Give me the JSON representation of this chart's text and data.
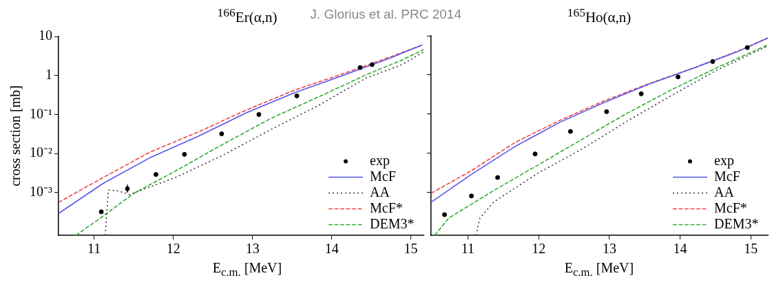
{
  "chart_data": [
    {
      "type": "line",
      "title": "$^{166}$Er(α,n)",
      "xlabel": "E$_{c.m.}$ [MeV]",
      "ylabel": "cross section [mb]",
      "annotations": [
        "J. Glorius et al. PRC 2014"
      ],
      "log": "y",
      "grid": false,
      "legend": "bottom right",
      "xlim": [
        10.55,
        15.16
      ],
      "xticks": [
        11,
        12,
        13,
        14,
        15
      ],
      "ylim": [
        8e-05,
        10
      ],
      "yticks": [
        10,
        1,
        {
          "value": 0.1,
          "label": "10⁻¹"
        },
        {
          "value": 0.01,
          "label": "10⁻²"
        },
        {
          "value": 0.001,
          "label": "10⁻³"
        }
      ],
      "series": [
        {
          "name": "exp",
          "type": "scatter",
          "marker": "circle",
          "color": "#000000",
          "x": [
            11.09,
            11.42,
            11.78,
            12.14,
            12.61,
            13.08,
            13.56,
            14.36,
            14.51
          ],
          "values": [
            0.00032,
            0.00125,
            0.0029,
            0.0095,
            0.032,
            0.1,
            0.3,
            1.6,
            1.9
          ],
          "errors": [
            null,
            [
              0.001,
              0.0016
            ],
            null,
            null,
            null,
            null,
            null,
            null,
            null
          ]
        },
        {
          "name": "McF",
          "type": "line",
          "line_style": "solid",
          "color": "#5555ee",
          "x": [
            10.55,
            11.11,
            11.71,
            12.32,
            12.92,
            13.53,
            14.14,
            14.74,
            15.14
          ],
          "values": [
            0.00029,
            0.0017,
            0.0079,
            0.028,
            0.11,
            0.36,
            1.0,
            2.8,
            6.0
          ]
        },
        {
          "name": "AA",
          "type": "line",
          "line_style": "dotted",
          "color": "#333333",
          "x": [
            11.14,
            11.16,
            11.18,
            11.3,
            11.45,
            12.02,
            12.62,
            13.23,
            13.83,
            14.44,
            14.89,
            15.16
          ],
          "values": [
            8e-05,
            0.00032,
            0.00115,
            0.0011,
            0.00089,
            0.0024,
            0.0089,
            0.041,
            0.17,
            0.87,
            1.9,
            4.0
          ]
        },
        {
          "name": "McF*",
          "type": "line",
          "line_style": "dashed",
          "color": "#ee4444",
          "x": [
            10.55,
            11.11,
            11.71,
            12.32,
            12.92,
            13.53,
            14.14,
            14.74,
            15.16
          ],
          "values": [
            0.00056,
            0.0024,
            0.011,
            0.036,
            0.13,
            0.42,
            1.1,
            3.0,
            6.2
          ]
        },
        {
          "name": "DEM3*",
          "type": "line",
          "line_style": "dashed",
          "color": "#33aa33",
          "x": [
            10.77,
            11.09,
            11.5,
            12.02,
            12.62,
            13.23,
            13.83,
            14.44,
            14.89,
            15.16
          ],
          "values": [
            8e-05,
            0.00023,
            0.00095,
            0.0035,
            0.017,
            0.079,
            0.28,
            1.05,
            2.5,
            4.6
          ]
        }
      ]
    },
    {
      "type": "line",
      "title": "$^{165}$Ho(α,n)",
      "xlabel": "E$_{c.m.}$ [MeV]",
      "log": "y",
      "grid": false,
      "legend": "bottom right",
      "tick_labels": "x",
      "xlim": [
        10.48,
        15.24
      ],
      "xticks": [
        11,
        12,
        13,
        14,
        15
      ],
      "ylim": [
        8e-05,
        10
      ],
      "yticks": [
        {
          "value": 10,
          "label": null
        },
        {
          "value": 1,
          "label": null
        },
        {
          "value": 0.1,
          "label": null
        },
        {
          "value": 0.01,
          "label": null
        },
        {
          "value": 0.001,
          "label": null
        }
      ],
      "series": [
        {
          "name": "exp",
          "type": "scatter",
          "marker": "circle",
          "color": "#000000",
          "x": [
            10.67,
            11.05,
            11.42,
            11.95,
            12.45,
            12.96,
            13.45,
            13.97,
            14.46,
            14.95
          ],
          "values": [
            0.00027,
            0.00081,
            0.0024,
            0.0096,
            0.036,
            0.115,
            0.33,
            0.89,
            2.2,
            5.0
          ]
        },
        {
          "name": "McF",
          "type": "line",
          "line_style": "solid",
          "color": "#5555ee",
          "x": [
            10.48,
            11.04,
            11.67,
            12.3,
            12.93,
            13.56,
            14.19,
            14.82,
            15.24
          ],
          "values": [
            0.00056,
            0.0028,
            0.015,
            0.062,
            0.2,
            0.58,
            1.5,
            4.0,
            8.7
          ]
        },
        {
          "name": "AA",
          "type": "line",
          "line_style": "dotted",
          "color": "#333333",
          "x": [
            11.12,
            11.14,
            11.17,
            11.36,
            11.99,
            12.62,
            13.25,
            13.88,
            14.51,
            15.24
          ],
          "values": [
            8e-05,
            0.00013,
            0.00022,
            0.00056,
            0.0031,
            0.013,
            0.066,
            0.3,
            1.3,
            5.5
          ]
        },
        {
          "name": "McF*",
          "type": "line",
          "line_style": "dashed",
          "color": "#ee4444",
          "x": [
            10.48,
            11.04,
            11.67,
            12.3,
            12.93,
            13.56,
            14.19,
            14.82,
            15.24
          ],
          "values": [
            0.00095,
            0.0035,
            0.019,
            0.069,
            0.22,
            0.6,
            1.5,
            4.1,
            8.9
          ]
        },
        {
          "name": "DEM3*",
          "type": "line",
          "line_style": "dashed",
          "color": "#33aa33",
          "x": [
            10.53,
            10.73,
            11.36,
            11.99,
            12.62,
            13.25,
            13.88,
            14.51,
            15.24
          ],
          "values": [
            8e-05,
            0.00022,
            0.0011,
            0.005,
            0.023,
            0.105,
            0.42,
            1.5,
            5.9
          ]
        }
      ]
    }
  ]
}
